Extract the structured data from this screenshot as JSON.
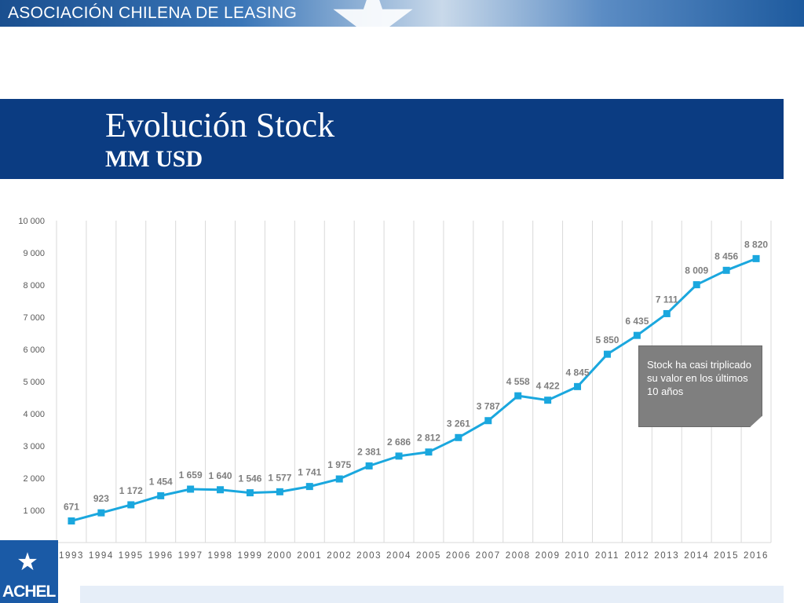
{
  "header": {
    "org_name": "ASOCIACIÓN CHILENA DE LEASING"
  },
  "slide": {
    "title": "Evolución Stock",
    "subtitle": "MM USD"
  },
  "note": {
    "text": "Stock ha casi triplicado su valor en los últimos 10 años"
  },
  "logo": {
    "text": "ACHEL"
  },
  "colors": {
    "series": "#1aa7de",
    "title_band": "#0b3c82",
    "grid": "#d9d9d9",
    "axis_text": "#595959",
    "data_label": "#7f7f7f"
  },
  "chart_data": {
    "type": "line",
    "x": [
      "1993",
      "1994",
      "1995",
      "1996",
      "1997",
      "1998",
      "1999",
      "2000",
      "2001",
      "2002",
      "2003",
      "2004",
      "2005",
      "2006",
      "2007",
      "2008",
      "2009",
      "2010",
      "2011",
      "2012",
      "2013",
      "2014",
      "2015",
      "2016"
    ],
    "series": [
      {
        "values": [
          671,
          923,
          1172,
          1454,
          1659,
          1640,
          1546,
          1577,
          1741,
          1975,
          2381,
          2686,
          2812,
          3261,
          3787,
          4558,
          4422,
          4845,
          5850,
          6435,
          7111,
          8009,
          8456,
          8820
        ],
        "labels": [
          "671",
          "923",
          "1 172",
          "1 454",
          "1 659",
          "1 640",
          "1 546",
          "1 577",
          "1 741",
          "1 975",
          "2 381",
          "2 686",
          "2 812",
          "3 261",
          "3 787",
          "4 558",
          "4 422",
          "4 845",
          "5 850",
          "6 435",
          "7 111",
          "8 009",
          "8 456",
          "8 820"
        ]
      }
    ],
    "ylim": [
      0,
      10000
    ],
    "yticks": [
      0,
      1000,
      2000,
      3000,
      4000,
      5000,
      6000,
      7000,
      8000,
      9000,
      10000
    ],
    "ytick_labels": [
      "-",
      "1 000",
      "2 000",
      "3 000",
      "4 000",
      "5 000",
      "6 000",
      "7 000",
      "8 000",
      "9 000",
      "10 000"
    ],
    "grid": "vertical",
    "marker": "square"
  }
}
